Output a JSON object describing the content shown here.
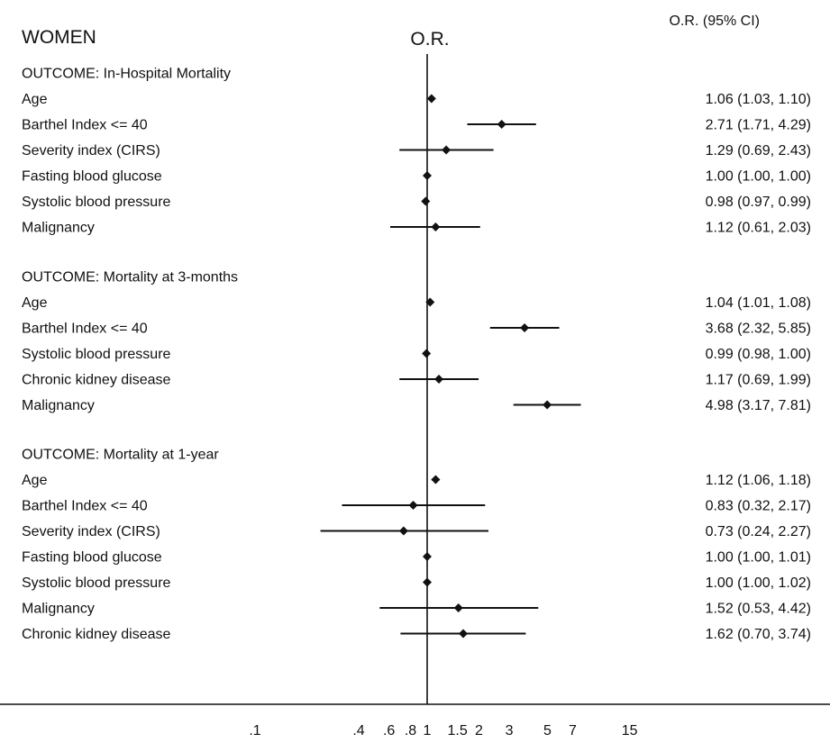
{
  "chart_data": {
    "type": "forest",
    "title": "WOMEN",
    "axis_label": "O.R.",
    "ci_header": "O.R. (95% CI)",
    "x_scale": "log",
    "reference_line": 1,
    "xlim": [
      0.06,
      80
    ],
    "x_ticks": [
      {
        "value": 0.1,
        "label": ".1"
      },
      {
        "value": 0.4,
        "label": ".4"
      },
      {
        "value": 0.6,
        "label": ".6"
      },
      {
        "value": 0.8,
        "label": ".8"
      },
      {
        "value": 1,
        "label": "1"
      },
      {
        "value": 1.5,
        "label": "1.5"
      },
      {
        "value": 2,
        "label": "2"
      },
      {
        "value": 3,
        "label": "3"
      },
      {
        "value": 5,
        "label": "5"
      },
      {
        "value": 7,
        "label": "7"
      },
      {
        "value": 15,
        "label": "15"
      }
    ],
    "groups": [
      {
        "heading": "OUTCOME: In-Hospital Mortality",
        "rows": [
          {
            "label": "Age",
            "or": 1.06,
            "lo": 1.03,
            "hi": 1.1,
            "ci_text": "1.06 (1.03, 1.10)"
          },
          {
            "label": "Barthel Index <= 40",
            "or": 2.71,
            "lo": 1.71,
            "hi": 4.29,
            "ci_text": "2.71 (1.71, 4.29)"
          },
          {
            "label": "Severity index (CIRS)",
            "or": 1.29,
            "lo": 0.69,
            "hi": 2.43,
            "ci_text": "1.29 (0.69, 2.43)"
          },
          {
            "label": "Fasting blood glucose",
            "or": 1.0,
            "lo": 1.0,
            "hi": 1.0,
            "ci_text": "1.00 (1.00, 1.00)"
          },
          {
            "label": "Systolic blood pressure",
            "or": 0.98,
            "lo": 0.97,
            "hi": 0.99,
            "ci_text": "0.98 (0.97, 0.99)"
          },
          {
            "label": "Malignancy",
            "or": 1.12,
            "lo": 0.61,
            "hi": 2.03,
            "ci_text": "1.12 (0.61, 2.03)"
          }
        ]
      },
      {
        "heading": "OUTCOME: Mortality at 3-months",
        "rows": [
          {
            "label": "Age",
            "or": 1.04,
            "lo": 1.01,
            "hi": 1.08,
            "ci_text": "1.04 (1.01, 1.08)"
          },
          {
            "label": "Barthel Index <= 40",
            "or": 3.68,
            "lo": 2.32,
            "hi": 5.85,
            "ci_text": "3.68 (2.32, 5.85)"
          },
          {
            "label": "Systolic blood pressure",
            "or": 0.99,
            "lo": 0.98,
            "hi": 1.0,
            "ci_text": "0.99 (0.98, 1.00)"
          },
          {
            "label": "Chronic kidney disease",
            "or": 1.17,
            "lo": 0.69,
            "hi": 1.99,
            "ci_text": "1.17 (0.69, 1.99)"
          },
          {
            "label": "Malignancy",
            "or": 4.98,
            "lo": 3.17,
            "hi": 7.81,
            "ci_text": "4.98 (3.17, 7.81)"
          }
        ]
      },
      {
        "heading": "OUTCOME: Mortality at 1-year",
        "rows": [
          {
            "label": "Age",
            "or": 1.12,
            "lo": 1.06,
            "hi": 1.18,
            "ci_text": "1.12 (1.06, 1.18)"
          },
          {
            "label": "Barthel Index <= 40",
            "or": 0.83,
            "lo": 0.32,
            "hi": 2.17,
            "ci_text": "0.83 (0.32, 2.17)"
          },
          {
            "label": "Severity index (CIRS)",
            "or": 0.73,
            "lo": 0.24,
            "hi": 2.27,
            "ci_text": "0.73 (0.24, 2.27)"
          },
          {
            "label": "Fasting blood glucose",
            "or": 1.0,
            "lo": 1.0,
            "hi": 1.01,
            "ci_text": "1.00 (1.00, 1.01)"
          },
          {
            "label": "Systolic blood pressure",
            "or": 1.0,
            "lo": 1.0,
            "hi": 1.02,
            "ci_text": "1.00 (1.00, 1.02)"
          },
          {
            "label": "Malignancy",
            "or": 1.52,
            "lo": 0.53,
            "hi": 4.42,
            "ci_text": "1.52 (0.53, 4.42)"
          },
          {
            "label": "Chronic kidney disease",
            "or": 1.62,
            "lo": 0.7,
            "hi": 3.74,
            "ci_text": "1.62 (0.70, 3.74)"
          }
        ]
      }
    ]
  }
}
